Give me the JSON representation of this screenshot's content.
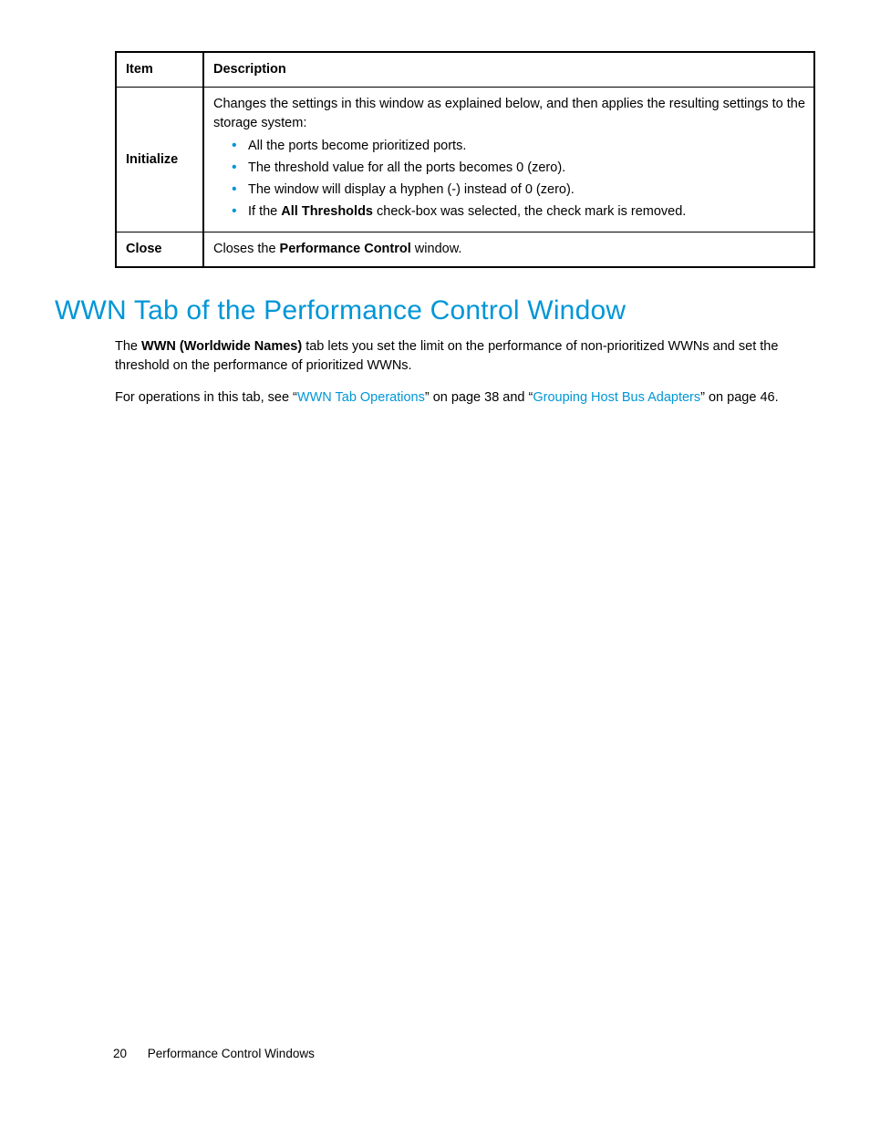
{
  "table": {
    "headers": {
      "item": "Item",
      "desc": "Description"
    },
    "rows": [
      {
        "item": "Initialize",
        "lead": "Changes the settings in this window as explained below, and then applies the resulting settings to the storage system:",
        "bullets": [
          "All the ports become prioritized ports.",
          "The threshold value for all the ports becomes 0 (zero).",
          "The window will display a hyphen (-) instead of 0 (zero)."
        ],
        "bullet4_pre": "If the ",
        "bullet4_bold": "All Thresholds",
        "bullet4_post": " check-box was selected, the check mark is removed."
      },
      {
        "item": "Close",
        "desc_pre": "Closes the ",
        "desc_bold": "Performance Control",
        "desc_post": " window."
      }
    ]
  },
  "heading": "WWN Tab of the Performance Control Window",
  "para1_pre": "The ",
  "para1_bold": "WWN (Worldwide Names)",
  "para1_post": " tab lets you set the limit on the performance of non-prioritized WWNs and set the threshold on the performance of prioritized WWNs.",
  "para2_pre": "For operations in this tab, see “",
  "para2_link1": "WWN Tab Operations",
  "para2_mid1": "” on page 38 and “",
  "para2_link2": "Grouping Host Bus Adapters",
  "para2_mid2": "” on page 46.",
  "footer": {
    "pageno": "20",
    "title": "Performance Control Windows"
  }
}
